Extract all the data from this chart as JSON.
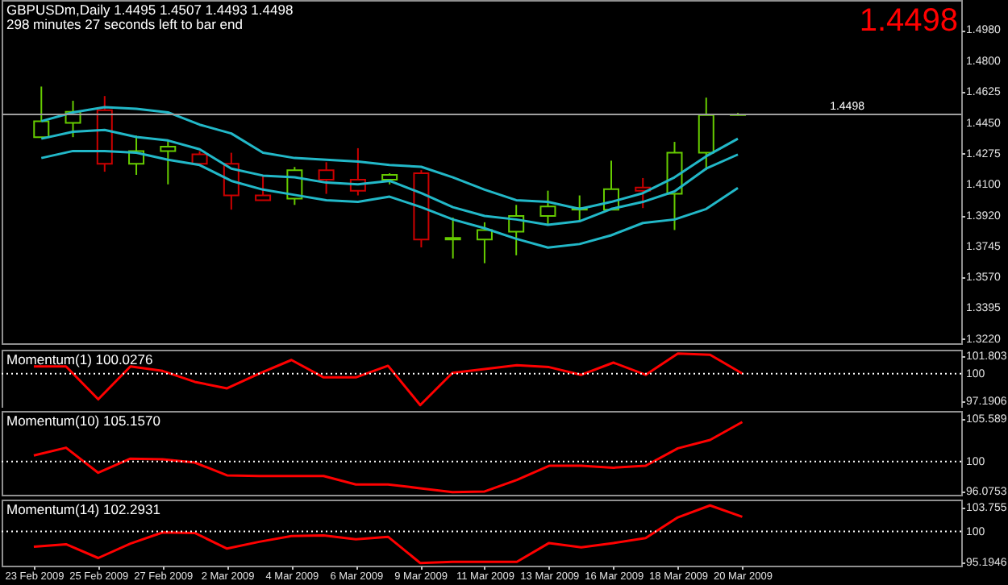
{
  "chart_data": [
    {
      "type": "candlestick",
      "title": "GBPUSDm,Daily  1.4495 1.4507 1.4493 1.4498",
      "subtitle": "298 minutes 27 seconds left to bar end",
      "annotations": [
        "1.4498"
      ],
      "categories": [
        null,
        null,
        null,
        null,
        null,
        null,
        null,
        null,
        null,
        null,
        null,
        null,
        null,
        null,
        null,
        null,
        null,
        null,
        null,
        null,
        null,
        null,
        null
      ],
      "ohlc": [
        [
          1.4369,
          1.4657,
          1.4369,
          1.4459
        ],
        [
          1.445,
          1.4576,
          1.4369,
          1.4513
        ],
        [
          1.4522,
          1.4603,
          1.4172,
          1.4217
        ],
        [
          1.4217,
          1.4378,
          1.4154,
          1.4289
        ],
        [
          1.4289,
          1.4351,
          1.41,
          1.4315
        ],
        [
          1.4271,
          1.4289,
          1.4208,
          1.4217
        ],
        [
          1.4217,
          1.428,
          1.3956,
          1.4037
        ],
        [
          1.4037,
          1.4154,
          1.401,
          1.401
        ],
        [
          1.4019,
          1.4199,
          1.3983,
          1.4181
        ],
        [
          1.4181,
          1.4226,
          1.4046,
          1.4127
        ],
        [
          1.4127,
          1.4306,
          1.4037,
          1.4064
        ],
        [
          1.4127,
          1.4163,
          1.41,
          1.4154
        ],
        [
          1.4163,
          1.4181,
          1.3741,
          1.3786
        ],
        [
          1.3786,
          1.3911,
          1.3678,
          1.3795
        ],
        [
          1.3786,
          1.3884,
          1.3651,
          1.384
        ],
        [
          1.3831,
          1.3983,
          1.3696,
          1.392
        ],
        [
          1.392,
          1.4064,
          1.3866,
          1.3974
        ],
        [
          1.3956,
          1.4037,
          1.3893,
          1.3965
        ],
        [
          1.3956,
          1.4235,
          1.3956,
          1.4073
        ],
        [
          1.4082,
          1.4136,
          1.3965,
          1.4064
        ],
        [
          1.4046,
          1.4342,
          1.384,
          1.428
        ],
        [
          1.428,
          1.4594,
          1.4181,
          1.4495
        ],
        [
          1.4495,
          1.4507,
          1.4493,
          1.4498
        ]
      ],
      "colors": [
        "#66cc00",
        "#66cc00",
        "#cc0000",
        "#66cc00",
        "#66cc00",
        "#cc0000",
        "#cc0000",
        "#cc0000",
        "#66cc00",
        "#cc0000",
        "#cc0000",
        "#66cc00",
        "#cc0000",
        "#66cc00",
        "#66cc00",
        "#66cc00",
        "#66cc00",
        "#66cc00",
        "#66cc00",
        "#cc0000",
        "#66cc00",
        "#66cc00",
        "#66cc00"
      ],
      "series": [
        {
          "type": "line",
          "color": "#22b8c8",
          "values": [
            1.446,
            1.451,
            1.454,
            1.453,
            1.451,
            1.444,
            1.439,
            1.428,
            1.425,
            1.424,
            1.423,
            1.421,
            1.42,
            1.414,
            1.407,
            1.401,
            1.4,
            1.396,
            1.4,
            1.405,
            1.414,
            1.426,
            1.436
          ]
        },
        {
          "type": "line",
          "color": "#22b8c8",
          "values": [
            1.436,
            1.44,
            1.441,
            1.437,
            1.435,
            1.43,
            1.419,
            1.415,
            1.414,
            1.411,
            1.41,
            1.412,
            1.405,
            1.397,
            1.392,
            1.39,
            1.387,
            1.389,
            1.396,
            1.4,
            1.406,
            1.419,
            1.427
          ]
        },
        {
          "type": "line",
          "color": "#22b8c8",
          "values": [
            1.425,
            1.429,
            1.429,
            1.428,
            1.424,
            1.421,
            1.412,
            1.407,
            1.404,
            1.401,
            1.4,
            1.403,
            1.397,
            1.39,
            1.385,
            1.379,
            1.374,
            1.376,
            1.381,
            1.388,
            1.39,
            1.396,
            1.408
          ]
        }
      ],
      "ylim": [
        1.3195,
        1.515
      ],
      "yticks": [
        {
          "value": 1.498,
          "label": "1.4980"
        },
        {
          "value": 1.48,
          "label": "1.4800"
        },
        1.4625,
        {
          "value": 1.445,
          "label": "1.4450"
        },
        1.4275,
        {
          "value": 1.41,
          "label": "1.4100"
        },
        {
          "value": 1.392,
          "label": "1.3920"
        },
        1.3745,
        {
          "value": 1.357,
          "label": "1.3570"
        },
        1.3395,
        {
          "value": 1.322,
          "label": "1.3220"
        }
      ],
      "ref_lines": [
        {
          "axis": "y",
          "value": 1.4498,
          "label": "1.4498",
          "color": "#a0a0a0",
          "line_style": "solid"
        }
      ],
      "tick_labels": "y"
    },
    {
      "type": "line",
      "title": "Momentum(1) 100.0276",
      "categories": [
        null,
        null,
        null,
        null,
        null,
        null,
        null,
        null,
        null,
        null,
        null,
        null,
        null,
        null,
        null,
        null,
        null,
        null,
        null,
        null,
        null,
        null,
        null
      ],
      "series": [
        {
          "color": "#ff0000",
          "values": [
            100.75,
            100.75,
            97.39,
            100.75,
            100.29,
            99.17,
            98.51,
            100.02,
            101.41,
            99.63,
            99.63,
            100.82,
            96.8,
            100.09,
            100.49,
            100.88,
            100.68,
            99.89,
            101.14,
            99.89,
            102.07,
            101.94,
            100.0276
          ]
        }
      ],
      "ylim": [
        96.53,
        102.46
      ],
      "yticks": [
        101.803,
        100,
        97.1906
      ],
      "ref_lines": [
        {
          "axis": "y",
          "value": 100,
          "color": "#ffffff",
          "line_style": "dotted"
        }
      ],
      "tick_labels": "y"
    },
    {
      "type": "line",
      "title": "Momentum(10) 105.1570",
      "categories": [
        null,
        null,
        null,
        null,
        null,
        null,
        null,
        null,
        null,
        null,
        null,
        null,
        null,
        null,
        null,
        null,
        null,
        null,
        null,
        null,
        null,
        null,
        null
      ],
      "series": [
        {
          "color": "#ff0000",
          "values": [
            100.79,
            101.8,
            98.52,
            100.37,
            100.28,
            99.86,
            98.18,
            98.1,
            98.1,
            98.1,
            97.0,
            97.0,
            96.5,
            95.99,
            96.08,
            97.59,
            99.44,
            99.44,
            99.19,
            99.44,
            101.72,
            102.81,
            105.157
          ]
        }
      ],
      "ylim": [
        95.65,
        106.6
      ],
      "yticks": [
        105.589,
        100,
        96.0753
      ],
      "ref_lines": [
        {
          "axis": "y",
          "value": 100,
          "color": "#ffffff",
          "line_style": "dotted"
        }
      ],
      "tick_labels": "y"
    },
    {
      "type": "line",
      "title": "Momentum(14) 102.2931",
      "categories": [
        "23 Feb 2009",
        null,
        "25 Feb 2009",
        null,
        "27 Feb 2009",
        null,
        "2 Mar 2009",
        null,
        "4 Mar 2009",
        null,
        "6 Mar 2009",
        null,
        "9 Mar 2009",
        null,
        "11 Mar 2009",
        null,
        "13 Mar 2009",
        null,
        "16 Mar 2009",
        null,
        "18 Mar 2009",
        null,
        "20 Mar 2009"
      ],
      "series": [
        {
          "color": "#ff0000",
          "values": [
            97.63,
            98.02,
            95.88,
            98.11,
            99.86,
            99.77,
            97.34,
            98.4,
            99.28,
            99.38,
            98.79,
            99.18,
            95.1,
            95.29,
            95.29,
            95.29,
            98.21,
            97.53,
            98.21,
            98.99,
            102.2,
            104.05,
            102.2931
          ]
        }
      ],
      "ylim": [
        94.69,
        104.96
      ],
      "yticks": [
        103.755,
        100,
        95.1946
      ],
      "ref_lines": [
        {
          "axis": "y",
          "value": 100,
          "color": "#ffffff",
          "line_style": "dotted"
        }
      ]
    }
  ]
}
